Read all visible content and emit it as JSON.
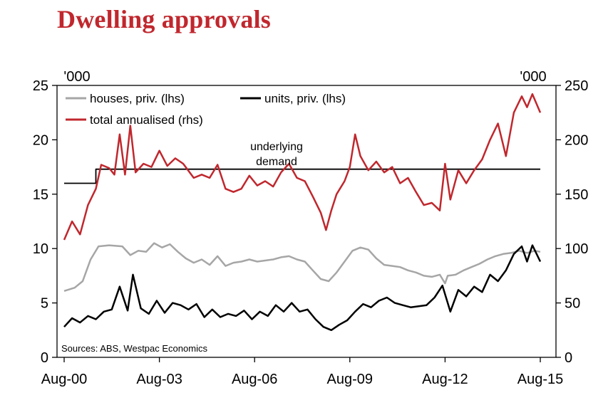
{
  "title": "Dwelling approvals",
  "colors": {
    "title": "#c0272d",
    "houses": "#a6a6a6",
    "units": "#000000",
    "total": "#c0272d",
    "demand": "#000000"
  },
  "chart_data": {
    "type": "line",
    "title": "Dwelling approvals",
    "left_unit": "'000",
    "right_unit": "'000",
    "x_ticks": [
      "Aug-00",
      "Aug-03",
      "Aug-06",
      "Aug-09",
      "Aug-12",
      "Aug-15"
    ],
    "x_range": [
      "2000-08",
      "2015-08"
    ],
    "y_left": {
      "min": 0,
      "max": 25,
      "ticks": [
        "0",
        "5",
        "10",
        "15",
        "20",
        "25"
      ]
    },
    "y_right": {
      "min": 0,
      "max": 250,
      "ticks": [
        "0",
        "50",
        "100",
        "150",
        "200",
        "250"
      ]
    },
    "grid": false,
    "legend_position": "top-left",
    "annotation": {
      "text_line1": "underlying",
      "text_line2": "demand",
      "x": "2007-08"
    },
    "source": "Sources: ABS, Westpac Economics",
    "series": [
      {
        "name": "houses, priv. (lhs)",
        "axis": "left",
        "color": "#a6a6a6",
        "points": [
          [
            "2000-08",
            6.1
          ],
          [
            "2000-12",
            6.4
          ],
          [
            "2001-03",
            7.0
          ],
          [
            "2001-06",
            9.0
          ],
          [
            "2001-09",
            10.2
          ],
          [
            "2002-01",
            10.3
          ],
          [
            "2002-06",
            10.2
          ],
          [
            "2002-09",
            9.4
          ],
          [
            "2002-12",
            9.8
          ],
          [
            "2003-03",
            9.7
          ],
          [
            "2003-06",
            10.5
          ],
          [
            "2003-09",
            10.1
          ],
          [
            "2003-12",
            10.4
          ],
          [
            "2004-03",
            9.7
          ],
          [
            "2004-06",
            9.1
          ],
          [
            "2004-09",
            8.7
          ],
          [
            "2004-12",
            9.0
          ],
          [
            "2005-03",
            8.5
          ],
          [
            "2005-06",
            9.3
          ],
          [
            "2005-09",
            8.4
          ],
          [
            "2005-12",
            8.7
          ],
          [
            "2006-03",
            8.8
          ],
          [
            "2006-06",
            9.0
          ],
          [
            "2006-09",
            8.8
          ],
          [
            "2006-12",
            8.9
          ],
          [
            "2007-03",
            9.0
          ],
          [
            "2007-06",
            9.2
          ],
          [
            "2007-09",
            9.3
          ],
          [
            "2007-12",
            9.0
          ],
          [
            "2008-03",
            8.8
          ],
          [
            "2008-06",
            8.0
          ],
          [
            "2008-09",
            7.2
          ],
          [
            "2008-12",
            7.0
          ],
          [
            "2009-03",
            7.8
          ],
          [
            "2009-06",
            8.8
          ],
          [
            "2009-09",
            9.8
          ],
          [
            "2009-12",
            10.1
          ],
          [
            "2010-03",
            9.9
          ],
          [
            "2010-06",
            9.1
          ],
          [
            "2010-09",
            8.5
          ],
          [
            "2010-12",
            8.4
          ],
          [
            "2011-03",
            8.3
          ],
          [
            "2011-06",
            8.0
          ],
          [
            "2011-09",
            7.8
          ],
          [
            "2011-12",
            7.5
          ],
          [
            "2012-03",
            7.4
          ],
          [
            "2012-06",
            7.6
          ],
          [
            "2012-08",
            6.8
          ],
          [
            "2012-09",
            7.5
          ],
          [
            "2012-12",
            7.6
          ],
          [
            "2013-03",
            8.0
          ],
          [
            "2013-06",
            8.3
          ],
          [
            "2013-09",
            8.6
          ],
          [
            "2013-12",
            9.0
          ],
          [
            "2014-03",
            9.3
          ],
          [
            "2014-06",
            9.5
          ],
          [
            "2014-09",
            9.6
          ],
          [
            "2014-12",
            9.8
          ],
          [
            "2015-03",
            9.6
          ],
          [
            "2015-06",
            9.8
          ],
          [
            "2015-08",
            9.7
          ]
        ]
      },
      {
        "name": "units, priv. (lhs)",
        "axis": "left",
        "color": "#000000",
        "points": [
          [
            "2000-08",
            2.8
          ],
          [
            "2000-11",
            3.6
          ],
          [
            "2001-02",
            3.2
          ],
          [
            "2001-05",
            3.8
          ],
          [
            "2001-08",
            3.5
          ],
          [
            "2001-11",
            4.2
          ],
          [
            "2002-02",
            4.4
          ],
          [
            "2002-05",
            6.5
          ],
          [
            "2002-08",
            4.3
          ],
          [
            "2002-10",
            7.6
          ],
          [
            "2003-01",
            4.5
          ],
          [
            "2003-04",
            4.0
          ],
          [
            "2003-07",
            5.2
          ],
          [
            "2003-10",
            4.1
          ],
          [
            "2004-01",
            5.0
          ],
          [
            "2004-04",
            4.8
          ],
          [
            "2004-07",
            4.4
          ],
          [
            "2004-10",
            4.9
          ],
          [
            "2005-01",
            3.7
          ],
          [
            "2005-04",
            4.4
          ],
          [
            "2005-07",
            3.7
          ],
          [
            "2005-10",
            4.0
          ],
          [
            "2006-01",
            3.8
          ],
          [
            "2006-04",
            4.3
          ],
          [
            "2006-07",
            3.5
          ],
          [
            "2006-10",
            4.2
          ],
          [
            "2007-01",
            3.8
          ],
          [
            "2007-04",
            4.8
          ],
          [
            "2007-07",
            4.2
          ],
          [
            "2007-10",
            5.0
          ],
          [
            "2008-01",
            4.2
          ],
          [
            "2008-04",
            4.4
          ],
          [
            "2008-07",
            3.5
          ],
          [
            "2008-10",
            2.8
          ],
          [
            "2009-01",
            2.5
          ],
          [
            "2009-04",
            3.0
          ],
          [
            "2009-07",
            3.4
          ],
          [
            "2009-10",
            4.2
          ],
          [
            "2010-01",
            4.9
          ],
          [
            "2010-04",
            4.6
          ],
          [
            "2010-07",
            5.2
          ],
          [
            "2010-10",
            5.5
          ],
          [
            "2011-01",
            5.0
          ],
          [
            "2011-04",
            4.8
          ],
          [
            "2011-07",
            4.6
          ],
          [
            "2011-10",
            4.7
          ],
          [
            "2012-01",
            4.8
          ],
          [
            "2012-04",
            5.5
          ],
          [
            "2012-07",
            6.6
          ],
          [
            "2012-10",
            4.2
          ],
          [
            "2013-01",
            6.2
          ],
          [
            "2013-04",
            5.6
          ],
          [
            "2013-07",
            6.5
          ],
          [
            "2013-10",
            6.0
          ],
          [
            "2014-01",
            7.6
          ],
          [
            "2014-04",
            7.0
          ],
          [
            "2014-07",
            8.0
          ],
          [
            "2014-10",
            9.5
          ],
          [
            "2015-01",
            10.2
          ],
          [
            "2015-03",
            8.8
          ],
          [
            "2015-05",
            10.3
          ],
          [
            "2015-08",
            8.8
          ]
        ]
      },
      {
        "name": "total annualised (rhs)",
        "axis": "right",
        "color": "#c0272d",
        "points": [
          [
            "2000-08",
            108
          ],
          [
            "2000-11",
            125
          ],
          [
            "2001-02",
            113
          ],
          [
            "2001-05",
            140
          ],
          [
            "2001-08",
            155
          ],
          [
            "2001-10",
            177
          ],
          [
            "2002-01",
            174
          ],
          [
            "2002-03",
            168
          ],
          [
            "2002-05",
            205
          ],
          [
            "2002-07",
            168
          ],
          [
            "2002-09",
            213
          ],
          [
            "2002-11",
            170
          ],
          [
            "2003-02",
            178
          ],
          [
            "2003-05",
            175
          ],
          [
            "2003-08",
            190
          ],
          [
            "2003-11",
            176
          ],
          [
            "2004-02",
            183
          ],
          [
            "2004-05",
            178
          ],
          [
            "2004-09",
            165
          ],
          [
            "2004-12",
            168
          ],
          [
            "2005-03",
            165
          ],
          [
            "2005-06",
            177
          ],
          [
            "2005-09",
            155
          ],
          [
            "2005-12",
            152
          ],
          [
            "2006-03",
            155
          ],
          [
            "2006-06",
            167
          ],
          [
            "2006-09",
            158
          ],
          [
            "2006-12",
            162
          ],
          [
            "2007-03",
            157
          ],
          [
            "2007-06",
            170
          ],
          [
            "2007-09",
            178
          ],
          [
            "2007-12",
            165
          ],
          [
            "2008-03",
            162
          ],
          [
            "2008-06",
            148
          ],
          [
            "2008-09",
            133
          ],
          [
            "2008-11",
            117
          ],
          [
            "2009-01",
            135
          ],
          [
            "2009-03",
            150
          ],
          [
            "2009-06",
            162
          ],
          [
            "2009-08",
            175
          ],
          [
            "2009-10",
            205
          ],
          [
            "2009-12",
            185
          ],
          [
            "2010-03",
            172
          ],
          [
            "2010-06",
            180
          ],
          [
            "2010-09",
            170
          ],
          [
            "2010-12",
            175
          ],
          [
            "2011-03",
            160
          ],
          [
            "2011-06",
            165
          ],
          [
            "2011-09",
            152
          ],
          [
            "2011-12",
            140
          ],
          [
            "2012-03",
            142
          ],
          [
            "2012-06",
            135
          ],
          [
            "2012-08",
            178
          ],
          [
            "2012-10",
            145
          ],
          [
            "2013-01",
            172
          ],
          [
            "2013-04",
            160
          ],
          [
            "2013-07",
            172
          ],
          [
            "2013-10",
            182
          ],
          [
            "2014-01",
            200
          ],
          [
            "2014-04",
            215
          ],
          [
            "2014-07",
            185
          ],
          [
            "2014-10",
            225
          ],
          [
            "2015-01",
            240
          ],
          [
            "2015-03",
            230
          ],
          [
            "2015-05",
            242
          ],
          [
            "2015-08",
            225
          ]
        ]
      },
      {
        "name": "underlying demand",
        "axis": "right",
        "color": "#000000",
        "points": [
          [
            "2000-08",
            160
          ],
          [
            "2001-08",
            160
          ],
          [
            "2001-08",
            173
          ],
          [
            "2015-08",
            173
          ]
        ]
      }
    ]
  }
}
